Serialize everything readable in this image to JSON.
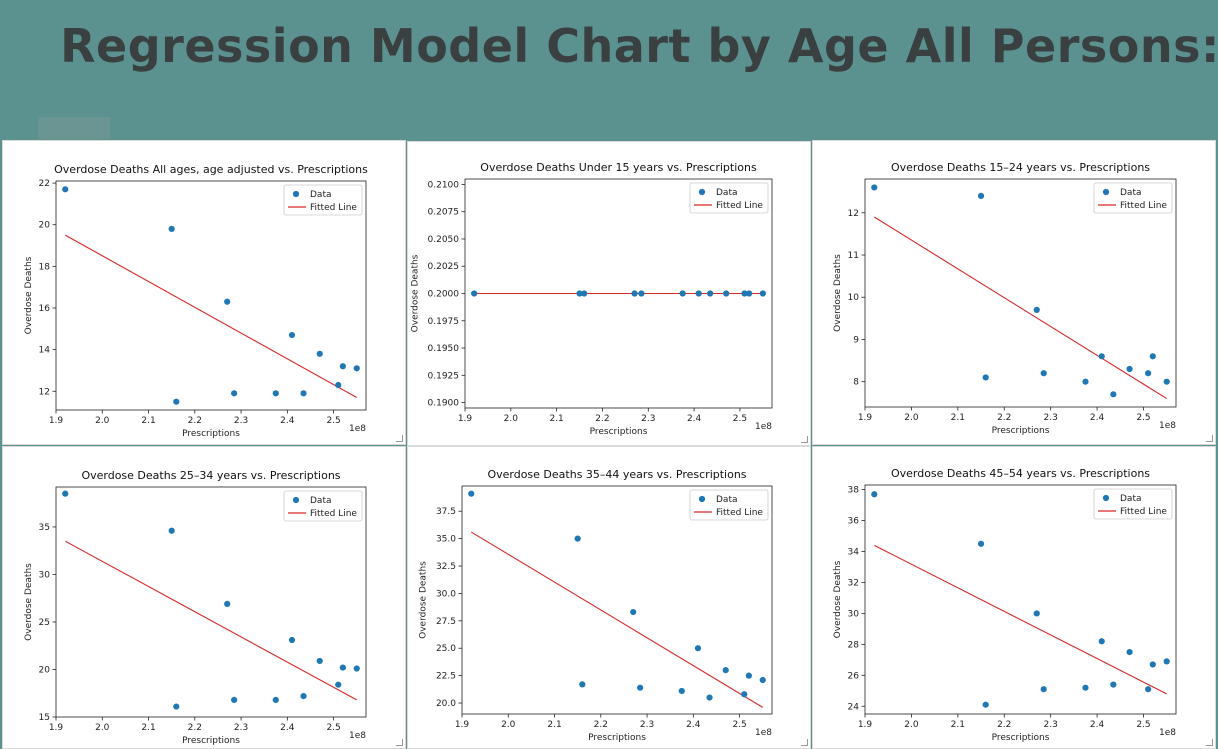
{
  "page": {
    "title": "Regression Model Chart by Age All Persons:"
  },
  "chart_data": [
    {
      "type": "scatter",
      "title": "Overdose Deaths All ages, age adjusted vs. Prescriptions",
      "xlabel": "Prescriptions",
      "ylabel": "Overdose Deaths",
      "x_offset_label": "1e8",
      "xlim": [
        1.9,
        2.57
      ],
      "ylim": [
        11.1,
        22.1
      ],
      "xticks": [
        1.9,
        2.0,
        2.1,
        2.2,
        2.3,
        2.4,
        2.5
      ],
      "xtick_labels": [
        "1.9",
        "2.0",
        "2.1",
        "2.2",
        "2.3",
        "2.4",
        "2.5"
      ],
      "yticks": [
        12,
        14,
        16,
        18,
        20,
        22
      ],
      "ytick_labels": [
        "12",
        "14",
        "16",
        "18",
        "20",
        "22"
      ],
      "legend": [
        "Data",
        "Fitted Line"
      ],
      "legend_position": "top-right",
      "points": {
        "x": [
          1.92,
          2.15,
          2.16,
          2.27,
          2.285,
          2.375,
          2.41,
          2.435,
          2.47,
          2.51,
          2.52,
          2.55
        ],
        "y": [
          21.7,
          19.8,
          11.5,
          16.3,
          11.9,
          11.9,
          14.7,
          11.9,
          13.8,
          12.3,
          13.2,
          13.1
        ]
      },
      "fitted_line": {
        "x": [
          1.92,
          2.55
        ],
        "y": [
          19.5,
          11.7
        ]
      },
      "colors": {
        "points": "#1f77b4",
        "line": "#d62728"
      }
    },
    {
      "type": "scatter",
      "title": "Overdose Deaths Under 15 years vs. Prescriptions",
      "xlabel": "Prescriptions",
      "ylabel": "Overdose Deaths",
      "x_offset_label": "1e8",
      "xlim": [
        1.9,
        2.57
      ],
      "ylim": [
        0.1895,
        0.2105
      ],
      "xticks": [
        1.9,
        2.0,
        2.1,
        2.2,
        2.3,
        2.4,
        2.5
      ],
      "xtick_labels": [
        "1.9",
        "2.0",
        "2.1",
        "2.2",
        "2.3",
        "2.4",
        "2.5"
      ],
      "yticks": [
        0.19,
        0.1925,
        0.195,
        0.1975,
        0.2,
        0.2025,
        0.205,
        0.2075,
        0.21
      ],
      "ytick_labels": [
        "0.1900",
        "0.1925",
        "0.1950",
        "0.1975",
        "0.2000",
        "0.2025",
        "0.2050",
        "0.2075",
        "0.2100"
      ],
      "legend": [
        "Data",
        "Fitted Line"
      ],
      "legend_position": "top-right",
      "points": {
        "x": [
          1.92,
          2.15,
          2.16,
          2.27,
          2.285,
          2.375,
          2.41,
          2.435,
          2.47,
          2.51,
          2.52,
          2.55
        ],
        "y": [
          0.2,
          0.2,
          0.2,
          0.2,
          0.2,
          0.2,
          0.2,
          0.2,
          0.2,
          0.2,
          0.2,
          0.2
        ]
      },
      "fitted_line": {
        "x": [
          1.92,
          2.55
        ],
        "y": [
          0.2,
          0.2
        ]
      },
      "colors": {
        "points": "#1f77b4",
        "line": "#d62728"
      }
    },
    {
      "type": "scatter",
      "title": "Overdose Deaths 15–24 years vs. Prescriptions",
      "xlabel": "Prescriptions",
      "ylabel": "Overdose Deaths",
      "x_offset_label": "1e8",
      "xlim": [
        1.9,
        2.57
      ],
      "ylim": [
        7.4,
        12.8
      ],
      "xticks": [
        1.9,
        2.0,
        2.1,
        2.2,
        2.3,
        2.4,
        2.5
      ],
      "xtick_labels": [
        "1.9",
        "2.0",
        "2.1",
        "2.2",
        "2.3",
        "2.4",
        "2.5"
      ],
      "yticks": [
        8,
        9,
        10,
        11,
        12
      ],
      "ytick_labels": [
        "8",
        "9",
        "10",
        "11",
        "12"
      ],
      "legend": [
        "Data",
        "Fitted Line"
      ],
      "legend_position": "top-right",
      "points": {
        "x": [
          1.92,
          2.15,
          2.16,
          2.27,
          2.285,
          2.375,
          2.41,
          2.435,
          2.47,
          2.51,
          2.52,
          2.55
        ],
        "y": [
          12.6,
          12.4,
          8.1,
          9.7,
          8.2,
          8.0,
          8.6,
          7.7,
          8.3,
          8.2,
          8.6,
          8.0
        ]
      },
      "fitted_line": {
        "x": [
          1.92,
          2.55
        ],
        "y": [
          11.9,
          7.6
        ]
      },
      "colors": {
        "points": "#1f77b4",
        "line": "#d62728"
      }
    },
    {
      "type": "scatter",
      "title": "Overdose Deaths 25–34 years vs. Prescriptions",
      "xlabel": "Prescriptions",
      "ylabel": "Overdose Deaths",
      "x_offset_label": "1e8",
      "xlim": [
        1.9,
        2.57
      ],
      "ylim": [
        15.0,
        39.2
      ],
      "xticks": [
        1.9,
        2.0,
        2.1,
        2.2,
        2.3,
        2.4,
        2.5
      ],
      "xtick_labels": [
        "1.9",
        "2.0",
        "2.1",
        "2.2",
        "2.3",
        "2.4",
        "2.5"
      ],
      "yticks": [
        15,
        20,
        25,
        30,
        35
      ],
      "ytick_labels": [
        "15",
        "20",
        "25",
        "30",
        "35"
      ],
      "legend": [
        "Data",
        "Fitted Line"
      ],
      "legend_position": "top-right",
      "points": {
        "x": [
          1.92,
          2.15,
          2.16,
          2.27,
          2.285,
          2.375,
          2.41,
          2.435,
          2.47,
          2.51,
          2.52,
          2.55
        ],
        "y": [
          38.5,
          34.6,
          16.1,
          26.9,
          16.8,
          16.8,
          23.1,
          17.2,
          20.9,
          18.4,
          20.2,
          20.1
        ]
      },
      "fitted_line": {
        "x": [
          1.92,
          2.55
        ],
        "y": [
          33.5,
          16.8
        ]
      },
      "colors": {
        "points": "#1f77b4",
        "line": "#d62728"
      }
    },
    {
      "type": "scatter",
      "title": "Overdose Deaths 35–44 years vs. Prescriptions",
      "xlabel": "Prescriptions",
      "ylabel": "Overdose Deaths",
      "x_offset_label": "1e8",
      "xlim": [
        1.9,
        2.57
      ],
      "ylim": [
        19.0,
        39.8
      ],
      "xticks": [
        1.9,
        2.0,
        2.1,
        2.2,
        2.3,
        2.4,
        2.5
      ],
      "xtick_labels": [
        "1.9",
        "2.0",
        "2.1",
        "2.2",
        "2.3",
        "2.4",
        "2.5"
      ],
      "yticks": [
        20.0,
        22.5,
        25.0,
        27.5,
        30.0,
        32.5,
        35.0,
        37.5
      ],
      "ytick_labels": [
        "20.0",
        "22.5",
        "25.0",
        "27.5",
        "30.0",
        "32.5",
        "35.0",
        "37.5"
      ],
      "legend": [
        "Data",
        "Fitted Line"
      ],
      "legend_position": "top-right",
      "points": {
        "x": [
          1.92,
          2.15,
          2.16,
          2.27,
          2.285,
          2.375,
          2.41,
          2.435,
          2.47,
          2.51,
          2.52,
          2.55
        ],
        "y": [
          39.1,
          35.0,
          21.7,
          28.3,
          21.4,
          21.1,
          25.0,
          20.5,
          23.0,
          20.8,
          22.5,
          22.1
        ]
      },
      "fitted_line": {
        "x": [
          1.92,
          2.55
        ],
        "y": [
          35.6,
          19.6
        ]
      },
      "colors": {
        "points": "#1f77b4",
        "line": "#d62728"
      }
    },
    {
      "type": "scatter",
      "title": "Overdose Deaths 45–54 years vs. Prescriptions",
      "xlabel": "Prescriptions",
      "ylabel": "Overdose Deaths",
      "x_offset_label": "1e8",
      "xlim": [
        1.9,
        2.57
      ],
      "ylim": [
        23.5,
        38.3
      ],
      "xticks": [
        1.9,
        2.0,
        2.1,
        2.2,
        2.3,
        2.4,
        2.5
      ],
      "xtick_labels": [
        "1.9",
        "2.0",
        "2.1",
        "2.2",
        "2.3",
        "2.4",
        "2.5"
      ],
      "yticks": [
        24,
        26,
        28,
        30,
        32,
        34,
        36,
        38
      ],
      "ytick_labels": [
        "24",
        "26",
        "28",
        "30",
        "32",
        "34",
        "36",
        "38"
      ],
      "legend": [
        "Data",
        "Fitted Line"
      ],
      "legend_position": "top-right",
      "points": {
        "x": [
          1.92,
          2.15,
          2.16,
          2.27,
          2.285,
          2.375,
          2.41,
          2.435,
          2.47,
          2.51,
          2.52,
          2.55
        ],
        "y": [
          37.7,
          34.5,
          24.1,
          30.0,
          25.1,
          25.2,
          28.2,
          25.4,
          27.5,
          25.1,
          26.7,
          26.9
        ]
      },
      "fitted_line": {
        "x": [
          1.92,
          2.55
        ],
        "y": [
          34.4,
          24.8
        ]
      },
      "colors": {
        "points": "#1f77b4",
        "line": "#d62728"
      }
    }
  ]
}
